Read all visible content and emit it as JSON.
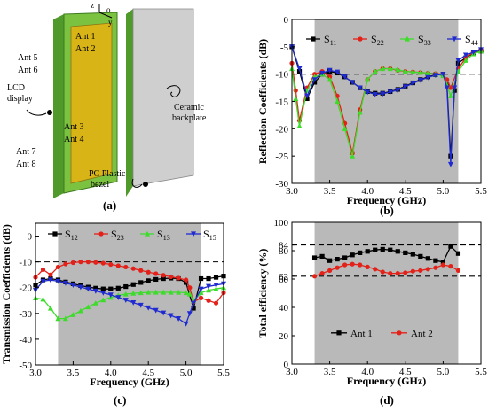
{
  "panels": {
    "a": {
      "caption": "(a)",
      "axes": {
        "z": "z",
        "o": "o",
        "y": "y"
      },
      "labels": {
        "ant1": "Ant 1",
        "ant2": "Ant 2",
        "ant3": "Ant 3",
        "ant4": "Ant 4",
        "ant5": "Ant 5",
        "ant6": "Ant 6",
        "ant7": "Ant 7",
        "ant8": "Ant 8",
        "lcd": "LCD display",
        "backplate": "Ceramic backplate",
        "bezel": "PC Plastic bezel"
      },
      "colors": {
        "frame": "#7cc241",
        "display": "#d9b417",
        "plate": "#cfcfcf"
      }
    },
    "b": {
      "caption": "(b)"
    },
    "c": {
      "caption": "(c)"
    },
    "d": {
      "caption": "(d)"
    }
  },
  "chart_data": [
    {
      "id": "b",
      "type": "line",
      "xlabel": "Frequency (GHz)",
      "ylabel": "Reflection Coefficients (dB)",
      "xlim": [
        3.0,
        5.5
      ],
      "ylim": [
        -30,
        0
      ],
      "xticks": [
        3.0,
        3.5,
        4.0,
        4.5,
        5.0,
        5.5
      ],
      "yticks": [
        -30,
        -25,
        -20,
        -15,
        -10,
        -5,
        0
      ],
      "shaded": [
        3.3,
        5.2
      ],
      "refline": -10,
      "legend_position": "top-right",
      "series": [
        {
          "name": "S11",
          "sub": "11",
          "color": "#000000",
          "marker": "square",
          "x": [
            3.0,
            3.1,
            3.2,
            3.3,
            3.4,
            3.5,
            3.6,
            3.7,
            3.8,
            3.9,
            4.0,
            4.1,
            4.2,
            4.3,
            4.4,
            4.5,
            4.6,
            4.7,
            4.8,
            4.9,
            5.0,
            5.05,
            5.1,
            5.15,
            5.2,
            5.3,
            5.4,
            5.5
          ],
          "y": [
            -5,
            -9.5,
            -14.5,
            -11.5,
            -10,
            -9.5,
            -9.8,
            -10.5,
            -11.5,
            -12.5,
            -13.2,
            -13.5,
            -13.5,
            -13.2,
            -12.8,
            -12.2,
            -11.6,
            -11,
            -10.5,
            -10.1,
            -10,
            -12,
            -25,
            -13,
            -8,
            -7,
            -6.2,
            -5.8
          ]
        },
        {
          "name": "S22",
          "sub": "22",
          "color": "#e32119",
          "marker": "circle",
          "x": [
            3.0,
            3.05,
            3.1,
            3.2,
            3.3,
            3.4,
            3.5,
            3.6,
            3.7,
            3.8,
            3.9,
            4.0,
            4.1,
            4.2,
            4.3,
            4.4,
            4.5,
            4.6,
            4.7,
            4.8,
            4.9,
            5.0,
            5.05,
            5.1,
            5.2,
            5.3,
            5.4,
            5.5
          ],
          "y": [
            -8,
            -13,
            -18.5,
            -12.5,
            -10,
            -9.5,
            -10.5,
            -14,
            -19,
            -24.5,
            -16.5,
            -11,
            -9.5,
            -9,
            -9,
            -9.3,
            -9.5,
            -9.6,
            -9.7,
            -9.8,
            -9.9,
            -10,
            -11,
            -12.5,
            -9,
            -7,
            -6,
            -5.5
          ]
        },
        {
          "name": "S33",
          "sub": "33",
          "color": "#3ddc2a",
          "marker": "triangle-up",
          "x": [
            3.0,
            3.05,
            3.1,
            3.2,
            3.3,
            3.4,
            3.5,
            3.6,
            3.7,
            3.8,
            3.9,
            4.0,
            4.1,
            4.2,
            4.3,
            4.4,
            4.5,
            4.6,
            4.7,
            4.8,
            4.9,
            5.0,
            5.05,
            5.1,
            5.2,
            5.3,
            5.4,
            5.5
          ],
          "y": [
            -9,
            -14.5,
            -19.5,
            -13,
            -10.5,
            -10,
            -11,
            -15,
            -20,
            -25,
            -17,
            -11,
            -9.5,
            -9,
            -9,
            -9.2,
            -9.5,
            -9.6,
            -9.7,
            -9.8,
            -10,
            -10.3,
            -12,
            -14,
            -9.5,
            -7.5,
            -6.3,
            -5.8
          ]
        },
        {
          "name": "S44",
          "sub": "44",
          "color": "#1f2bd0",
          "marker": "triangle-down",
          "x": [
            3.0,
            3.1,
            3.2,
            3.3,
            3.4,
            3.5,
            3.6,
            3.7,
            3.8,
            3.9,
            4.0,
            4.1,
            4.2,
            4.3,
            4.4,
            4.5,
            4.6,
            4.7,
            4.8,
            4.9,
            5.0,
            5.05,
            5.1,
            5.15,
            5.2,
            5.3,
            5.4,
            5.5
          ],
          "y": [
            -5,
            -9,
            -14,
            -11,
            -9.8,
            -9.3,
            -9.6,
            -10.5,
            -11.5,
            -12.5,
            -13.3,
            -13.7,
            -13.6,
            -13.3,
            -12.9,
            -12.3,
            -11.7,
            -11.1,
            -10.6,
            -10.2,
            -10,
            -12.5,
            -26.5,
            -12.5,
            -7.5,
            -6.5,
            -6,
            -5.5
          ]
        }
      ]
    },
    {
      "id": "c",
      "type": "line",
      "xlabel": "Frequency (GHz)",
      "ylabel": "Transmission Coefficients (dB)",
      "xlim": [
        3.0,
        5.5
      ],
      "ylim": [
        -50,
        5
      ],
      "xticks": [
        3.0,
        3.5,
        4.0,
        4.5,
        5.0,
        5.5
      ],
      "yticks": [
        -50,
        -40,
        -30,
        -20,
        -10,
        0
      ],
      "shaded": [
        3.3,
        5.2
      ],
      "refline": -10,
      "legend_position": "top",
      "series": [
        {
          "name": "S12",
          "sub": "12",
          "color": "#000000",
          "marker": "square",
          "x": [
            3.0,
            3.1,
            3.2,
            3.3,
            3.4,
            3.5,
            3.6,
            3.7,
            3.8,
            3.9,
            4.0,
            4.1,
            4.2,
            4.3,
            4.4,
            4.5,
            4.6,
            4.7,
            4.8,
            4.9,
            5.0,
            5.1,
            5.2,
            5.3,
            5.4,
            5.5
          ],
          "y": [
            -19,
            -17,
            -16.5,
            -17,
            -17.8,
            -18.5,
            -19.2,
            -19.8,
            -20.2,
            -20.5,
            -20.5,
            -20.2,
            -19.6,
            -18.8,
            -18,
            -17.3,
            -16.8,
            -16.5,
            -16.3,
            -16.5,
            -18,
            -28,
            -16.5,
            -16.5,
            -16,
            -15.5
          ]
        },
        {
          "name": "S23",
          "sub": "23",
          "color": "#e32119",
          "marker": "circle",
          "x": [
            3.0,
            3.1,
            3.2,
            3.3,
            3.4,
            3.5,
            3.6,
            3.7,
            3.8,
            3.9,
            4.0,
            4.1,
            4.2,
            4.3,
            4.4,
            4.5,
            4.6,
            4.7,
            4.8,
            4.9,
            5.0,
            5.05,
            5.1,
            5.2,
            5.3,
            5.4,
            5.5
          ],
          "y": [
            -16,
            -13,
            -15,
            -12,
            -10.8,
            -10.3,
            -10,
            -10,
            -10.2,
            -10.5,
            -11,
            -11.5,
            -12,
            -12.6,
            -13.3,
            -14,
            -14.6,
            -15.2,
            -15.8,
            -16.3,
            -17,
            -20,
            -25.5,
            -24,
            -25,
            -26,
            -22
          ]
        },
        {
          "name": "S13",
          "sub": "13",
          "color": "#3ddc2a",
          "marker": "triangle-up",
          "x": [
            3.0,
            3.1,
            3.2,
            3.3,
            3.4,
            3.5,
            3.6,
            3.7,
            3.8,
            3.9,
            4.0,
            4.1,
            4.2,
            4.3,
            4.4,
            4.5,
            4.6,
            4.7,
            4.8,
            4.9,
            5.0,
            5.05,
            5.1,
            5.2,
            5.3,
            5.4,
            5.5
          ],
          "y": [
            -24,
            -24.5,
            -28,
            -32,
            -32,
            -30.5,
            -29,
            -27.5,
            -26,
            -24.8,
            -23.8,
            -23,
            -22.5,
            -22.2,
            -22,
            -21.8,
            -21.8,
            -21.8,
            -21.8,
            -21.8,
            -22,
            -22.5,
            -25,
            -22,
            -21,
            -20.5,
            -20
          ]
        },
        {
          "name": "S15",
          "sub": "15",
          "color": "#1f2bd0",
          "marker": "triangle-down",
          "x": [
            3.0,
            3.1,
            3.2,
            3.3,
            3.4,
            3.5,
            3.6,
            3.7,
            3.8,
            3.9,
            4.0,
            4.1,
            4.2,
            4.3,
            4.4,
            4.5,
            4.6,
            4.7,
            4.8,
            4.9,
            5.0,
            5.05,
            5.1,
            5.2,
            5.3,
            5.4,
            5.5
          ],
          "y": [
            -21,
            -17.5,
            -17,
            -17.5,
            -18.2,
            -19,
            -19.8,
            -20.5,
            -21.3,
            -22,
            -22.8,
            -23.8,
            -24.8,
            -25.8,
            -26.8,
            -27.8,
            -28.8,
            -29.8,
            -30.8,
            -32,
            -34,
            -30,
            -26,
            -20.5,
            -19.5,
            -19,
            -18.5
          ]
        }
      ]
    },
    {
      "id": "d",
      "type": "line",
      "xlabel": "Frequency (GHz)",
      "ylabel": "Total efficiency (%)",
      "xlim": [
        3.0,
        5.5
      ],
      "ylim": [
        0,
        100
      ],
      "xticks": [
        3.0,
        3.5,
        4.0,
        4.5,
        5.0,
        5.5
      ],
      "yticks": [
        0,
        20,
        40,
        60,
        80,
        100
      ],
      "extra_yticks": [
        62,
        84
      ],
      "shaded": [
        3.3,
        5.2
      ],
      "reflines": [
        62,
        84
      ],
      "legend_position": "bottom-center",
      "series": [
        {
          "name": "Ant 1",
          "color": "#000000",
          "marker": "square",
          "x": [
            3.3,
            3.4,
            3.5,
            3.6,
            3.7,
            3.8,
            3.9,
            4.0,
            4.1,
            4.2,
            4.3,
            4.4,
            4.5,
            4.6,
            4.7,
            4.8,
            4.9,
            5.0,
            5.1,
            5.2
          ],
          "y": [
            75,
            76,
            73,
            74,
            75,
            77,
            78.5,
            79.5,
            80.5,
            81,
            80.5,
            79.5,
            78.5,
            77.5,
            76,
            74.5,
            73,
            72,
            83,
            78
          ]
        },
        {
          "name": "Ant 2",
          "color": "#e32119",
          "marker": "circle",
          "x": [
            3.3,
            3.4,
            3.5,
            3.6,
            3.7,
            3.8,
            3.9,
            4.0,
            4.1,
            4.2,
            4.3,
            4.4,
            4.5,
            4.6,
            4.7,
            4.8,
            4.9,
            5.0,
            5.1,
            5.2
          ],
          "y": [
            62,
            64,
            66,
            68,
            70,
            70.5,
            70,
            68.5,
            67,
            65,
            64,
            64,
            64.5,
            65.5,
            66,
            67,
            68,
            70,
            69,
            66
          ]
        }
      ]
    }
  ]
}
